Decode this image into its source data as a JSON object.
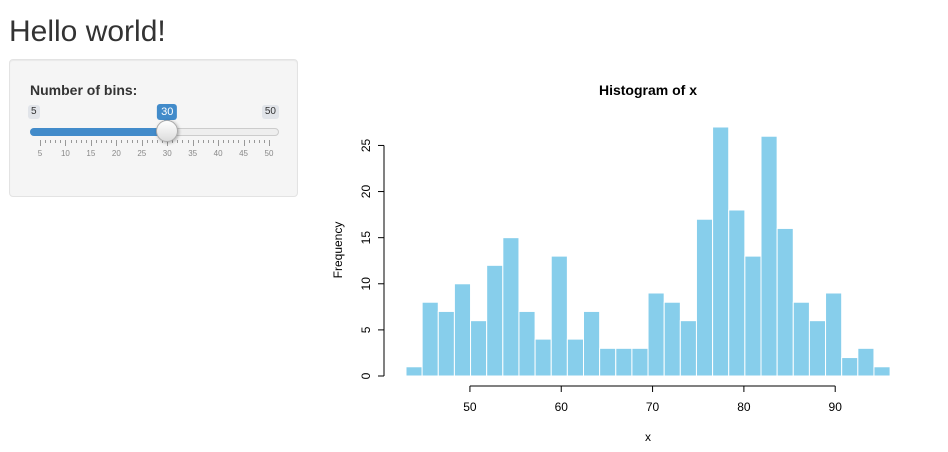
{
  "page": {
    "title": "Hello world!"
  },
  "sidebar": {
    "slider": {
      "label": "Number of bins:",
      "min": 5,
      "max": 50,
      "value": 30,
      "min_label": "5",
      "max_label": "50",
      "value_label": "30",
      "grid_labels": [
        "5",
        "10",
        "15",
        "20",
        "25",
        "30",
        "35",
        "40",
        "45",
        "50"
      ],
      "accent_color": "#428bca"
    }
  },
  "chart_data": {
    "type": "bar",
    "title": "Histogram of x",
    "xlabel": "x",
    "ylabel": "Frequency",
    "bar_color": "#87ceeb",
    "bar_border": "#ffffff",
    "bin_start": 43.0,
    "bin_width": 1.767,
    "values": [
      1,
      8,
      7,
      10,
      6,
      12,
      15,
      7,
      4,
      13,
      4,
      7,
      3,
      3,
      3,
      9,
      8,
      6,
      17,
      27,
      18,
      13,
      26,
      16,
      8,
      6,
      9,
      2,
      3,
      1
    ],
    "xticks": [
      50,
      60,
      70,
      80,
      90
    ],
    "yticks": [
      0,
      5,
      10,
      15,
      20,
      25
    ],
    "xlim": [
      43.0,
      96.0
    ],
    "ylim": [
      0,
      27
    ]
  }
}
